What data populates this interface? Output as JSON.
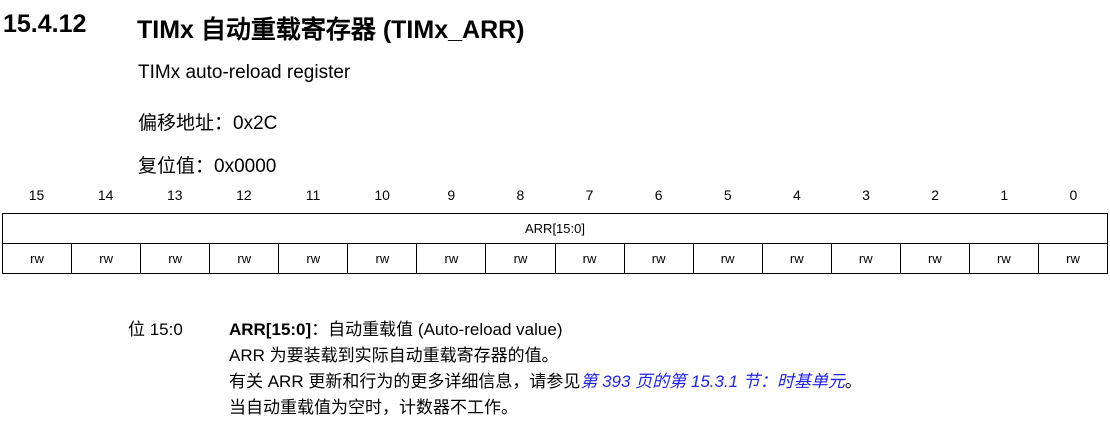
{
  "section": {
    "number": "15.4.12",
    "title": "TIMx 自动重载寄存器 (TIMx_ARR)"
  },
  "subtitle": "TIMx auto-reload register",
  "offset": "偏移地址：0x2C",
  "reset": "复位值：0x0000",
  "register": {
    "bits": [
      "15",
      "14",
      "13",
      "12",
      "11",
      "10",
      "9",
      "8",
      "7",
      "6",
      "5",
      "4",
      "3",
      "2",
      "1",
      "0"
    ],
    "field": "ARR[15:0]",
    "access": [
      "rw",
      "rw",
      "rw",
      "rw",
      "rw",
      "rw",
      "rw",
      "rw",
      "rw",
      "rw",
      "rw",
      "rw",
      "rw",
      "rw",
      "rw",
      "rw"
    ]
  },
  "description": {
    "bits": "位 15:0",
    "field_name": "ARR[15:0]",
    "field_title": "：自动重载值 (Auto-reload value)",
    "line2": "ARR 为要装载到实际自动重载寄存器的值。",
    "line3_prefix": "有关 ARR 更新和行为的更多详细信息，请参见",
    "line3_link": "第 393 页的第 15.3.1 节：时基单元",
    "line3_suffix": "。",
    "line4": "当自动重载值为空时，计数器不工作。",
    "link_color": "#2222ee"
  }
}
